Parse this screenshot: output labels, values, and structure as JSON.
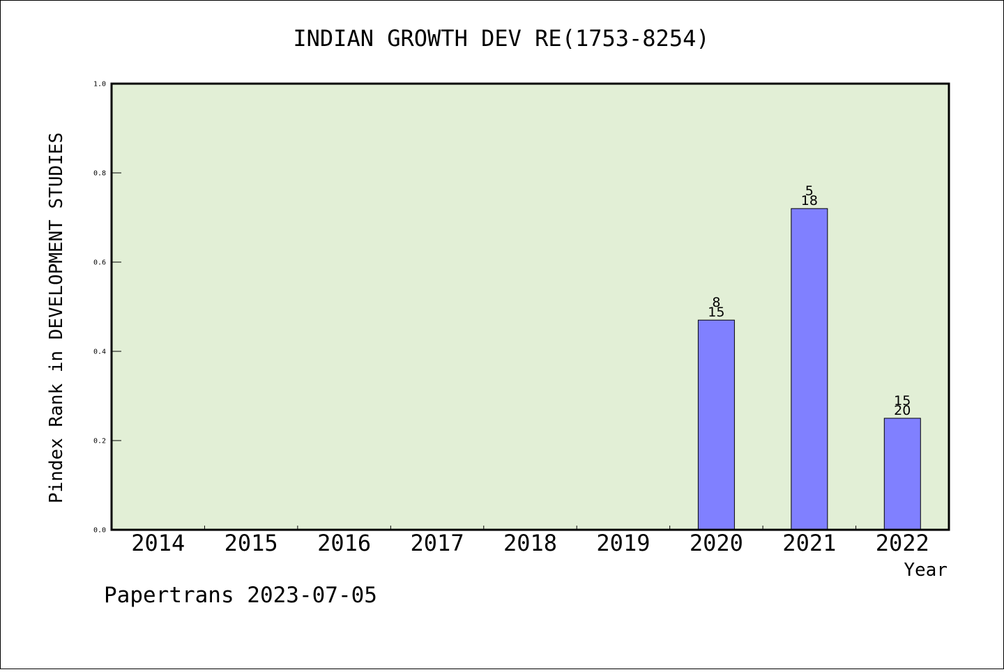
{
  "chart_data": {
    "type": "bar",
    "title": "INDIAN GROWTH DEV RE(1753-8254)",
    "xlabel": "Year",
    "ylabel": "Pindex Rank in DEVELOPMENT STUDIES",
    "categories": [
      "2014",
      "2015",
      "2016",
      "2017",
      "2018",
      "2019",
      "2020",
      "2021",
      "2022"
    ],
    "values": [
      null,
      null,
      null,
      null,
      null,
      null,
      0.47,
      0.72,
      0.25
    ],
    "bar_labels_top": [
      "",
      "",
      "",
      "",
      "",
      "",
      "8",
      "5",
      "15"
    ],
    "bar_labels_bottom": [
      "",
      "",
      "",
      "",
      "",
      "",
      "15",
      "18",
      "20"
    ],
    "ylim": [
      0,
      1.0
    ],
    "yticks": [
      "0.0",
      "0.2",
      "0.4",
      "0.6",
      "0.8",
      "1.0"
    ],
    "grid": false,
    "legend": "none",
    "colors": {
      "plot_background": "#e2efd6",
      "bar_fill": "#8080ff",
      "bar_stroke": "#000000"
    }
  },
  "footer": {
    "text": "Papertrans 2023-07-05"
  }
}
